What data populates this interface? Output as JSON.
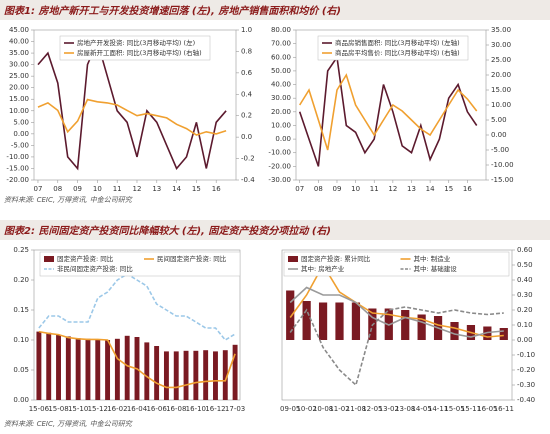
{
  "panels": [
    {
      "title": "图表1: 房地产新开工与开发投资增速回落 (左), 房地产销售面积和均价 (右)",
      "source": "资料来源: CEIC, 万得资讯, 中金公司研究"
    },
    {
      "title": "图表2: 民间固定资产投资同比降幅较大 (左), 固定资产投资分项拉动 (右)",
      "source": "资料来源: CEIC, 万得资讯, 中金公司研究"
    }
  ],
  "chart_data": [
    {
      "type": "line",
      "x": [
        2007,
        2007.5,
        2008,
        2008.5,
        2009,
        2009.5,
        2010,
        2010.5,
        2011,
        2011.5,
        2012,
        2012.5,
        2013,
        2013.5,
        2014,
        2014.5,
        2015,
        2015.5,
        2016,
        2016.5
      ],
      "xlim": [
        2006.8,
        2017
      ],
      "xticks": [
        {
          "value": 2007,
          "label": "07"
        },
        {
          "value": 2008,
          "label": "08"
        },
        {
          "value": 2009,
          "label": "09"
        },
        {
          "value": 2010,
          "label": "10"
        },
        {
          "value": 2011,
          "label": "11"
        },
        {
          "value": 2012,
          "label": "12"
        },
        {
          "value": 2013,
          "label": "13"
        },
        {
          "value": 2014,
          "label": "14"
        },
        {
          "value": 2015,
          "label": "15"
        },
        {
          "value": 2016,
          "label": "16"
        }
      ],
      "ylim": [
        -20,
        45
      ],
      "yticks": [
        {
          "value": 45,
          "label": "45.00"
        },
        {
          "value": 40,
          "label": "40.00"
        },
        {
          "value": 35,
          "label": "35.00"
        },
        {
          "value": 30,
          "label": "30.00"
        },
        {
          "value": 25,
          "label": "25.00"
        },
        {
          "value": 20,
          "label": "20.00"
        },
        {
          "value": 15,
          "label": "15.00"
        },
        {
          "value": 10,
          "label": "10.00"
        },
        {
          "value": 5,
          "label": "5.00"
        },
        {
          "value": 0,
          "label": "0.00"
        },
        {
          "value": -5,
          "label": "-5.00"
        },
        {
          "value": -10,
          "label": "-10.00"
        },
        {
          "value": -15,
          "label": "-15.00"
        },
        {
          "value": -20,
          "label": "-20.00"
        }
      ],
      "y2lim": [
        -0.4,
        1.0
      ],
      "y2ticks": [
        {
          "value": 1.0,
          "label": "1.0"
        },
        0.8,
        0.6,
        0.4,
        0.2,
        {
          "value": 0,
          "label": "0.0"
        },
        -0.2,
        -0.4
      ],
      "series": [
        {
          "name": "房地产开发投资: 同比(3月移动平均) (左)",
          "color": "#5c1a2e",
          "values": [
            30,
            35,
            22,
            -10,
            -15,
            30,
            40,
            25,
            10,
            5,
            -10,
            10,
            5,
            -5,
            -15,
            -10,
            5,
            -15,
            5,
            10
          ]
        },
        {
          "name": "房屋新开工面积: 同比(3月移动平均) (右轴)",
          "color": "#f0a030",
          "axis": "y2",
          "values": [
            0.28,
            0.32,
            0.25,
            0.05,
            0.15,
            0.35,
            0.33,
            0.32,
            0.3,
            0.25,
            0.2,
            0.22,
            0.2,
            0.18,
            0.12,
            0.08,
            0.02,
            0.05,
            0.03,
            0.06
          ]
        }
      ]
    },
    {
      "type": "line",
      "x": [
        2007,
        2007.5,
        2008,
        2008.5,
        2009,
        2009.5,
        2010,
        2010.5,
        2011,
        2011.5,
        2012,
        2012.5,
        2013,
        2013.5,
        2014,
        2014.5,
        2015,
        2015.5,
        2016,
        2016.5
      ],
      "xlim": [
        2006.8,
        2017
      ],
      "xticks": [
        {
          "value": 2007,
          "label": "07"
        },
        {
          "value": 2008,
          "label": "08"
        },
        {
          "value": 2009,
          "label": "09"
        },
        {
          "value": 2010,
          "label": "10"
        },
        {
          "value": 2011,
          "label": "11"
        },
        {
          "value": 2012,
          "label": "12"
        },
        {
          "value": 2013,
          "label": "13"
        },
        {
          "value": 2014,
          "label": "14"
        },
        {
          "value": 2015,
          "label": "15"
        },
        {
          "value": 2016,
          "label": "16"
        }
      ],
      "ylim": [
        -30,
        80
      ],
      "yticks": [
        {
          "value": 80,
          "label": "80.00"
        },
        {
          "value": 70,
          "label": "70.00"
        },
        {
          "value": 60,
          "label": "60.00"
        },
        {
          "value": 50,
          "label": "50.00"
        },
        {
          "value": 40,
          "label": "40.00"
        },
        {
          "value": 30,
          "label": "30.00"
        },
        {
          "value": 20,
          "label": "20.00"
        },
        {
          "value": 10,
          "label": "10.00"
        },
        {
          "value": 0,
          "label": "0.00"
        },
        {
          "value": -10,
          "label": "-10.00"
        },
        {
          "value": -20,
          "label": "-20.00"
        },
        {
          "value": -30,
          "label": "-30.00"
        }
      ],
      "y2lim": [
        -15,
        35
      ],
      "y2ticks": [
        {
          "value": 35,
          "label": "35.00"
        },
        {
          "value": 30,
          "label": "30.00"
        },
        {
          "value": 25,
          "label": "25.00"
        },
        {
          "value": 20,
          "label": "20.00"
        },
        {
          "value": 15,
          "label": "15.00"
        },
        {
          "value": 10,
          "label": "10.00"
        },
        {
          "value": 5,
          "label": "5.00"
        },
        {
          "value": 0,
          "label": "0.00"
        },
        {
          "value": -5,
          "label": "-5.00"
        },
        {
          "value": -10,
          "label": "-10.00"
        },
        {
          "value": -15,
          "label": "-15.00"
        }
      ],
      "series": [
        {
          "name": "商品房销售面积: 同比(3月移动平均) (左轴)",
          "color": "#5c1a2e",
          "values": [
            20,
            0,
            -20,
            50,
            60,
            10,
            5,
            -10,
            0,
            40,
            20,
            -5,
            -10,
            10,
            -15,
            0,
            30,
            40,
            20,
            10
          ]
        },
        {
          "name": "商品房平均售价: 同比(3月移动平均) (右轴)",
          "color": "#f0a030",
          "axis": "y2",
          "values": [
            10,
            15,
            5,
            -5,
            15,
            20,
            10,
            5,
            0,
            5,
            10,
            8,
            5,
            2,
            0,
            5,
            10,
            15,
            12,
            8
          ]
        }
      ]
    },
    {
      "type": "bar",
      "categories": [
        "15-06",
        null,
        "15-08",
        null,
        "15-10",
        null,
        "15-12",
        null,
        "16-02",
        null,
        "16-04",
        null,
        "16-06",
        null,
        "16-08",
        null,
        "16-10",
        null,
        "16-12",
        null,
        "17-03"
      ],
      "ylim": [
        0,
        0.25
      ],
      "yticks": [
        {
          "value": 0,
          "label": "0.00"
        },
        {
          "value": 0.05,
          "label": "0.05"
        },
        {
          "value": 0.1,
          "label": "0.10"
        },
        {
          "value": 0.15,
          "label": "0.15"
        },
        {
          "value": 0.2,
          "label": "0.20"
        },
        {
          "value": 0.25,
          "label": "0.25"
        }
      ],
      "series": [
        {
          "name": "固定资产投资: 同比",
          "color": "#7a1a22",
          "type": "bar",
          "values": [
            0.114,
            0.112,
            0.109,
            0.106,
            0.103,
            0.102,
            0.1,
            0.1,
            0.102,
            0.107,
            0.105,
            0.096,
            0.09,
            0.081,
            0.081,
            0.082,
            0.082,
            0.083,
            0.081,
            0.083,
            0.092
          ]
        },
        {
          "name": "民间固定资产投资: 同比",
          "color": "#f0a030",
          "values": [
            0.114,
            0.111,
            0.109,
            0.104,
            0.102,
            0.101,
            0.101,
            0.1,
            0.069,
            0.057,
            0.052,
            0.039,
            0.028,
            0.021,
            0.021,
            0.025,
            0.029,
            0.031,
            0.032,
            0.032,
            0.077
          ]
        },
        {
          "name": "非民间固定资产投资: 同比",
          "color": "#9cc8e8",
          "dashed": true,
          "values": [
            0.12,
            0.14,
            0.14,
            0.13,
            0.13,
            0.13,
            0.17,
            0.18,
            0.2,
            0.21,
            0.2,
            0.19,
            0.16,
            0.15,
            0.14,
            0.14,
            0.13,
            0.12,
            0.12,
            0.1,
            0.11
          ]
        }
      ]
    },
    {
      "type": "bar",
      "categories": [
        "09-05",
        "10-02",
        "10-08",
        "11-02",
        "11-08",
        "12-05",
        "13-02",
        "13-08",
        "14-05",
        "14-11",
        "15-05",
        "15-11",
        "16-05",
        "16-11"
      ],
      "ylim": [
        -0.4,
        0.6
      ],
      "yaxis_side": "right",
      "yticks": [
        {
          "value": 0.6,
          "label": "0.60"
        },
        {
          "value": 0.5,
          "label": "0.50"
        },
        {
          "value": 0.4,
          "label": "0.40"
        },
        {
          "value": 0.3,
          "label": "0.30"
        },
        {
          "value": 0.2,
          "label": "0.20"
        },
        {
          "value": 0.1,
          "label": "0.10"
        },
        {
          "value": 0,
          "label": "0.00"
        },
        {
          "value": -0.1,
          "label": "-0.10"
        },
        {
          "value": -0.2,
          "label": "-0.20"
        },
        {
          "value": -0.3,
          "label": "-0.30"
        },
        {
          "value": -0.4,
          "label": "-0.40"
        }
      ],
      "series": [
        {
          "name": "固定资产投资: 累计同比",
          "color": "#7a1a22",
          "type": "bar",
          "values": [
            0.33,
            0.26,
            0.25,
            0.25,
            0.25,
            0.21,
            0.21,
            0.2,
            0.17,
            0.16,
            0.12,
            0.1,
            0.09,
            0.08
          ]
        },
        {
          "name": "其中: 制造业",
          "color": "#f0a030",
          "values": [
            0.15,
            0.3,
            0.5,
            0.32,
            0.25,
            0.18,
            0.17,
            0.15,
            0.14,
            0.1,
            0.08,
            0.05,
            0.02,
            0.03
          ]
        },
        {
          "name": "其中: 房地产业",
          "color": "#9a9a9a",
          "values": [
            0.25,
            0.35,
            0.3,
            0.3,
            0.25,
            0.15,
            0.1,
            0.15,
            0.12,
            0.08,
            0.04,
            0.02,
            0.05,
            0.06
          ]
        },
        {
          "name": "其中: 基础建设",
          "color": "#8a8a8a",
          "dashed": true,
          "values": [
            0.05,
            0.2,
            -0.05,
            -0.2,
            -0.3,
            0.1,
            0.2,
            0.22,
            0.2,
            0.18,
            0.2,
            0.18,
            0.17,
            0.18
          ]
        }
      ]
    }
  ]
}
